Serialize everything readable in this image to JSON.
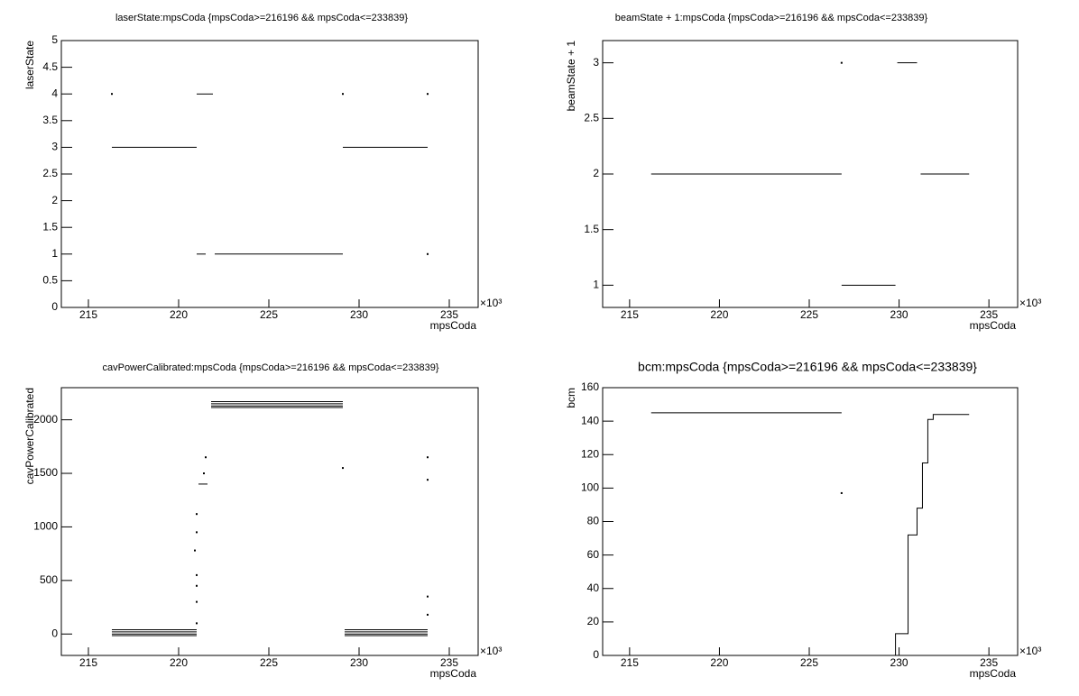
{
  "chart_data": [
    {
      "type": "line",
      "title": "laserState:mpsCoda {mpsCoda>=216196 && mpsCoda<=233839}",
      "xlabel": "mpsCoda",
      "ylabel": "laserState",
      "x_multiplier": "×10³",
      "x": [
        216.3,
        null,
        216.3,
        221.0,
        null,
        221.0,
        221.9,
        null,
        221.0,
        221.5,
        null,
        222.0,
        229.1,
        null,
        229.1,
        233.8,
        null,
        229.1,
        null,
        233.8,
        null,
        233.8
      ],
      "series": [
        {
          "color": "#000000",
          "values": [
            4,
            null,
            3,
            3,
            null,
            4,
            4,
            null,
            1,
            1,
            null,
            1,
            1,
            null,
            3,
            3,
            null,
            4,
            null,
            4,
            null,
            1
          ]
        }
      ],
      "xlim": [
        213.5,
        236.6
      ],
      "ylim": [
        0,
        5
      ],
      "xticks": [
        215,
        220,
        225,
        230,
        235
      ],
      "yticks": [
        0,
        0.5,
        1,
        1.5,
        2,
        2.5,
        3,
        3.5,
        4,
        4.5,
        5
      ]
    },
    {
      "type": "line",
      "title": "beamState + 1:mpsCoda {mpsCoda>=216196 && mpsCoda<=233839}",
      "xlabel": "mpsCoda",
      "ylabel": "beamState + 1",
      "x_multiplier": "×10³",
      "x": [
        216.2,
        226.8,
        null,
        226.8,
        null,
        226.8,
        229.8,
        null,
        229.9,
        231.0,
        null,
        231.2,
        233.9
      ],
      "series": [
        {
          "color": "#000000",
          "values": [
            2,
            2,
            null,
            3,
            null,
            1,
            1,
            null,
            3,
            3,
            null,
            2,
            2
          ]
        }
      ],
      "xlim": [
        213.5,
        236.6
      ],
      "ylim": [
        0.8,
        3.2
      ],
      "xticks": [
        215,
        220,
        225,
        230,
        235
      ],
      "yticks": [
        1,
        1.5,
        2,
        2.5,
        3
      ]
    },
    {
      "type": "line",
      "title": "cavPowerCalibrated:mpsCoda {mpsCoda>=216196 && mpsCoda<=233839}",
      "xlabel": "mpsCoda",
      "ylabel": "cavPowerCalibrated",
      "x_multiplier": "×10³",
      "x": [
        216.3,
        221.0,
        null,
        216.3,
        221.0,
        null,
        216.3,
        221.0,
        null,
        216.3,
        221.0,
        null,
        221.0,
        null,
        221.0,
        null,
        221.0,
        null,
        221.0,
        null,
        220.9,
        null,
        221.0,
        null,
        221.0,
        null,
        221.1,
        221.6,
        null,
        221.4,
        null,
        221.5,
        null,
        221.8,
        229.1,
        null,
        221.8,
        229.1,
        null,
        221.8,
        229.1,
        null,
        221.8,
        229.1,
        null,
        229.1,
        null,
        233.8,
        null,
        233.8,
        null,
        233.8,
        null,
        233.8,
        null,
        229.2,
        233.8,
        null,
        229.2,
        233.8,
        null,
        229.2,
        233.8,
        null,
        229.2,
        233.8
      ],
      "series": [
        {
          "color": "#000000",
          "values": [
            40,
            40,
            null,
            20,
            20,
            null,
            0,
            0,
            null,
            -15,
            -15,
            null,
            100,
            null,
            300,
            null,
            450,
            null,
            550,
            null,
            780,
            null,
            950,
            null,
            1120,
            null,
            1400,
            1400,
            null,
            1500,
            null,
            1650,
            null,
            2170,
            2170,
            null,
            2150,
            2150,
            null,
            2130,
            2130,
            null,
            2115,
            2115,
            null,
            1550,
            null,
            1650,
            null,
            1440,
            null,
            350,
            null,
            180,
            null,
            40,
            40,
            null,
            20,
            20,
            null,
            0,
            0,
            null,
            -15,
            -15
          ]
        }
      ],
      "xlim": [
        213.5,
        236.6
      ],
      "ylim": [
        -200,
        2300
      ],
      "xticks": [
        215,
        220,
        225,
        230,
        235
      ],
      "yticks": [
        0,
        500,
        1000,
        1500,
        2000
      ]
    },
    {
      "type": "line",
      "title": "bcm:mpsCoda {mpsCoda>=216196 && mpsCoda<=233839}",
      "xlabel": "mpsCoda",
      "ylabel": "bcm",
      "x_multiplier": "×10³",
      "x": [
        216.2,
        226.8,
        null,
        226.8,
        null,
        229.8,
        229.8,
        230.5,
        230.5,
        231.0,
        231.0,
        231.3,
        231.3,
        231.6,
        231.6,
        231.9,
        231.9,
        233.9
      ],
      "series": [
        {
          "color": "#000000",
          "values": [
            145,
            145,
            null,
            97,
            null,
            0,
            13,
            13,
            72,
            72,
            88,
            88,
            115,
            115,
            141,
            141,
            144,
            144
          ]
        }
      ],
      "xlim": [
        213.5,
        236.6
      ],
      "ylim": [
        0,
        160
      ],
      "xticks": [
        215,
        220,
        225,
        230,
        235
      ],
      "yticks": [
        0,
        20,
        40,
        60,
        80,
        100,
        120,
        140,
        160
      ]
    }
  ]
}
